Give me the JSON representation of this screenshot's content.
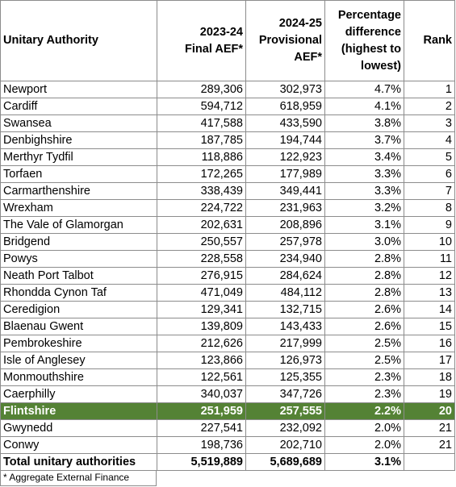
{
  "headers": {
    "unitary_authority": "Unitary Authority",
    "final_aef": [
      "2023-24",
      "Final AEF*"
    ],
    "provisional_aef": [
      "2024-25",
      "Provisional",
      "AEF*"
    ],
    "percentage_difference": [
      "Percentage",
      "difference",
      "(highest to",
      "lowest)"
    ],
    "rank": "Rank"
  },
  "rows": [
    {
      "authority": "Newport",
      "final": "289,306",
      "provisional": "302,973",
      "pct": "4.7%",
      "rank": "1"
    },
    {
      "authority": "Cardiff",
      "final": "594,712",
      "provisional": "618,959",
      "pct": "4.1%",
      "rank": "2"
    },
    {
      "authority": "Swansea",
      "final": "417,588",
      "provisional": "433,590",
      "pct": "3.8%",
      "rank": "3"
    },
    {
      "authority": "Denbighshire",
      "final": "187,785",
      "provisional": "194,744",
      "pct": "3.7%",
      "rank": "4"
    },
    {
      "authority": "Merthyr Tydfil",
      "final": "118,886",
      "provisional": "122,923",
      "pct": "3.4%",
      "rank": "5"
    },
    {
      "authority": "Torfaen",
      "final": "172,265",
      "provisional": "177,989",
      "pct": "3.3%",
      "rank": "6"
    },
    {
      "authority": "Carmarthenshire",
      "final": "338,439",
      "provisional": "349,441",
      "pct": "3.3%",
      "rank": "7"
    },
    {
      "authority": "Wrexham",
      "final": "224,722",
      "provisional": "231,963",
      "pct": "3.2%",
      "rank": "8"
    },
    {
      "authority": "The Vale of Glamorgan",
      "final": "202,631",
      "provisional": "208,896",
      "pct": "3.1%",
      "rank": "9"
    },
    {
      "authority": "Bridgend",
      "final": "250,557",
      "provisional": "257,978",
      "pct": "3.0%",
      "rank": "10"
    },
    {
      "authority": "Powys",
      "final": "228,558",
      "provisional": "234,940",
      "pct": "2.8%",
      "rank": "11"
    },
    {
      "authority": "Neath Port Talbot",
      "final": "276,915",
      "provisional": "284,624",
      "pct": "2.8%",
      "rank": "12"
    },
    {
      "authority": "Rhondda Cynon Taf",
      "final": "471,049",
      "provisional": "484,112",
      "pct": "2.8%",
      "rank": "13"
    },
    {
      "authority": "Ceredigion",
      "final": "129,341",
      "provisional": "132,715",
      "pct": "2.6%",
      "rank": "14"
    },
    {
      "authority": "Blaenau Gwent",
      "final": "139,809",
      "provisional": "143,433",
      "pct": "2.6%",
      "rank": "15"
    },
    {
      "authority": "Pembrokeshire",
      "final": "212,626",
      "provisional": "217,999",
      "pct": "2.5%",
      "rank": "16"
    },
    {
      "authority": "Isle of Anglesey",
      "final": "123,866",
      "provisional": "126,973",
      "pct": "2.5%",
      "rank": "17"
    },
    {
      "authority": "Monmouthshire",
      "final": "122,561",
      "provisional": "125,355",
      "pct": "2.3%",
      "rank": "18"
    },
    {
      "authority": "Caerphilly",
      "final": "340,037",
      "provisional": "347,726",
      "pct": "2.3%",
      "rank": "19"
    },
    {
      "authority": "Flintshire",
      "final": "251,959",
      "provisional": "257,555",
      "pct": "2.2%",
      "rank": "20",
      "highlighted": true
    },
    {
      "authority": "Gwynedd",
      "final": "227,541",
      "provisional": "232,092",
      "pct": "2.0%",
      "rank": "21"
    },
    {
      "authority": "Conwy",
      "final": "198,736",
      "provisional": "202,710",
      "pct": "2.0%",
      "rank": "21"
    }
  ],
  "total": {
    "authority": "Total unitary authorities",
    "final": "5,519,889",
    "provisional": "5,689,689",
    "pct": "3.1%",
    "rank": ""
  },
  "footnote": "* Aggregate External Finance",
  "colors": {
    "highlight_row": "#548235",
    "highlight_text": "#ffffff",
    "grid": "#8c8c8c"
  }
}
